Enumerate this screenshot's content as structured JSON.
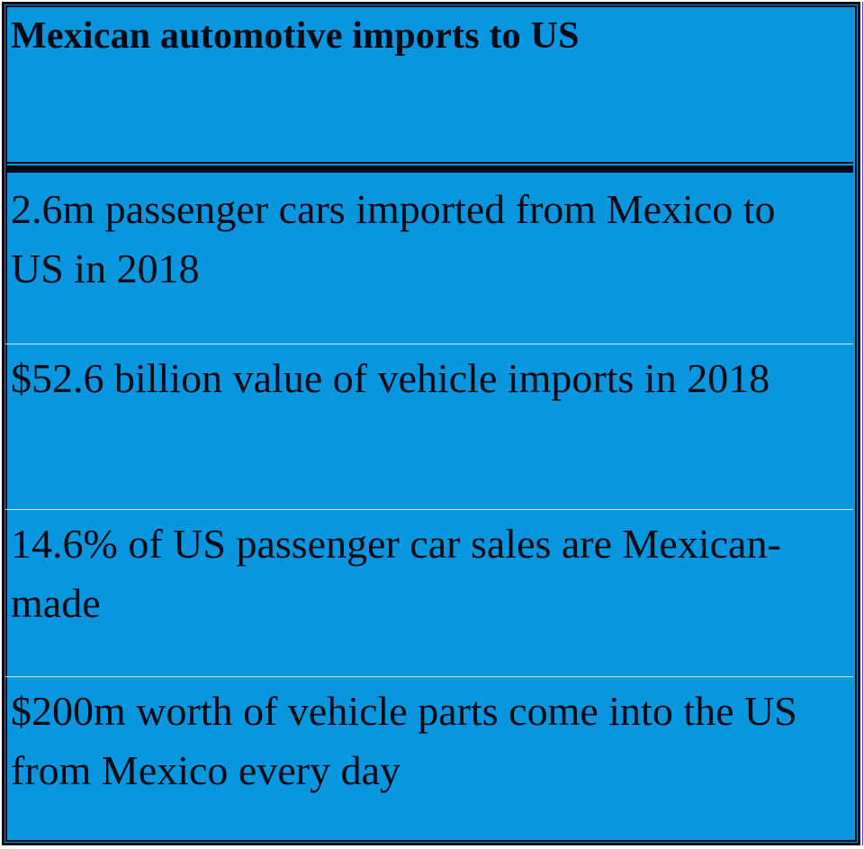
{
  "table": {
    "header": "Mexican automotive imports to US",
    "rows": [
      "2.6m passenger cars imported from Mexico to US in 2018",
      "$52.6 billion value of vehicle imports in 2018",
      "14.6% of US passenger car sales are Mexican-made",
      "$200m worth of vehicle parts come into the US from Mexico every day"
    ]
  },
  "colors": {
    "background": "#0896df",
    "text": "#0a0a14",
    "row_separator": "#cfe6f3"
  }
}
